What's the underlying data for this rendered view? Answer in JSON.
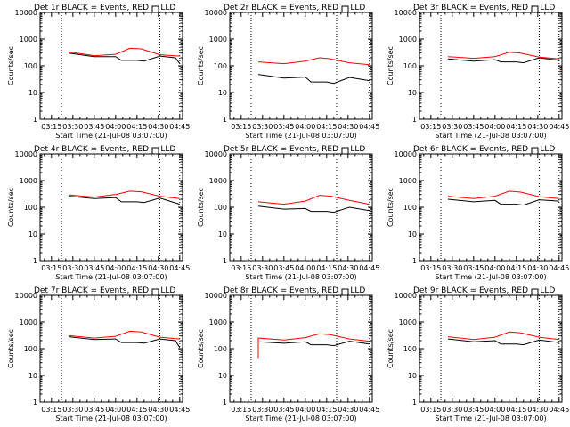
{
  "chart_data": [
    {
      "type": "line",
      "title": "Det 1r BLACK = Events, RED = LLD",
      "xlabel": "Start Time (21-Jul-08 03:07:00)",
      "ylabel": "Counts/sec",
      "x_tick_labels": [
        "03:15",
        "03:30",
        "03:45",
        "04:00",
        "04:15",
        "04:30",
        "04:45"
      ],
      "y_tick_labels": [
        "1",
        "10",
        "100",
        "1000",
        "10000"
      ],
      "ylim": [
        1,
        10000
      ],
      "yscale": "log",
      "xlim": [
        "03:07",
        "04:47"
      ],
      "dotted_lines_at": [
        "03:22",
        "04:31",
        "04:45"
      ],
      "series": [
        {
          "color": "#000000",
          "x": [
            "03:27",
            "03:45",
            "04:00",
            "04:04",
            "04:15",
            "04:20",
            "04:31",
            "04:42",
            "04:45"
          ],
          "y": [
            300,
            220,
            220,
            160,
            160,
            150,
            230,
            200,
            120
          ]
        },
        {
          "color": "#ff0000",
          "x": [
            "03:27",
            "03:45",
            "04:00",
            "04:10",
            "04:18",
            "04:31",
            "04:45"
          ],
          "y": [
            330,
            240,
            270,
            450,
            430,
            260,
            230
          ]
        }
      ]
    },
    {
      "type": "line",
      "title": "Det 2r BLACK = Events, RED = LLD",
      "xlabel": "Start Time (21-Jul-08 03:07:00)",
      "ylabel": "Counts/sec",
      "x_tick_labels": [
        "03:15",
        "03:30",
        "03:45",
        "04:00",
        "04:15",
        "04:30",
        "04:45"
      ],
      "y_tick_labels": [
        "1",
        "10",
        "100",
        "1000",
        "10000"
      ],
      "ylim": [
        1,
        10000
      ],
      "yscale": "log",
      "xlim": [
        "03:07",
        "04:47"
      ],
      "dotted_lines_at": [
        "03:22",
        "04:22",
        "04:45"
      ],
      "series": [
        {
          "color": "#000000",
          "x": [
            "03:27",
            "03:45",
            "04:00",
            "04:04",
            "04:15",
            "04:20",
            "04:31",
            "04:45"
          ],
          "y": [
            48,
            35,
            38,
            25,
            25,
            22,
            37,
            28
          ]
        },
        {
          "color": "#ff0000",
          "x": [
            "03:27",
            "03:45",
            "04:00",
            "04:10",
            "04:18",
            "04:31",
            "04:45"
          ],
          "y": [
            140,
            120,
            150,
            200,
            180,
            130,
            110
          ]
        }
      ]
    },
    {
      "type": "line",
      "title": "Det 3r BLACK = Events, RED = LLD",
      "xlabel": "Start Time (21-Jul-08 03:07:00)",
      "ylabel": "Counts/sec",
      "x_tick_labels": [
        "03:15",
        "03:30",
        "03:45",
        "04:00",
        "04:15",
        "04:30",
        "04:45"
      ],
      "y_tick_labels": [
        "1",
        "10",
        "100",
        "1000",
        "10000"
      ],
      "ylim": [
        1,
        10000
      ],
      "yscale": "log",
      "xlim": [
        "03:07",
        "04:47"
      ],
      "dotted_lines_at": [
        "03:22",
        "04:31",
        "04:45"
      ],
      "series": [
        {
          "color": "#000000",
          "x": [
            "03:27",
            "03:45",
            "04:00",
            "04:04",
            "04:15",
            "04:20",
            "04:31",
            "04:45"
          ],
          "y": [
            180,
            150,
            170,
            140,
            140,
            130,
            200,
            160
          ]
        },
        {
          "color": "#ff0000",
          "x": [
            "03:27",
            "03:45",
            "04:00",
            "04:10",
            "04:18",
            "04:31",
            "04:45"
          ],
          "y": [
            220,
            190,
            220,
            320,
            300,
            210,
            180
          ]
        }
      ]
    },
    {
      "type": "line",
      "title": "Det 4r BLACK = Events, RED = LLD",
      "xlabel": "Start Time (21-Jul-08 03:07:00)",
      "ylabel": "Counts/sec",
      "x_tick_labels": [
        "03:15",
        "03:30",
        "03:45",
        "04:00",
        "04:15",
        "04:30",
        "04:45"
      ],
      "y_tick_labels": [
        "1",
        "10",
        "100",
        "1000",
        "10000"
      ],
      "ylim": [
        1,
        10000
      ],
      "yscale": "log",
      "xlim": [
        "03:07",
        "04:47"
      ],
      "dotted_lines_at": [
        "03:22",
        "04:31",
        "04:45"
      ],
      "series": [
        {
          "color": "#000000",
          "x": [
            "03:27",
            "03:45",
            "04:00",
            "04:04",
            "04:15",
            "04:20",
            "04:31",
            "04:45"
          ],
          "y": [
            260,
            210,
            230,
            160,
            160,
            150,
            220,
            130
          ]
        },
        {
          "color": "#ff0000",
          "x": [
            "03:27",
            "03:45",
            "04:00",
            "04:10",
            "04:18",
            "04:31",
            "04:45"
          ],
          "y": [
            290,
            240,
            300,
            400,
            380,
            260,
            210
          ]
        }
      ]
    },
    {
      "type": "line",
      "title": "Det 5r BLACK = Events, RED = LLD",
      "xlabel": "Start Time (21-Jul-08 03:07:00)",
      "ylabel": "Counts/sec",
      "x_tick_labels": [
        "03:15",
        "03:30",
        "03:45",
        "04:00",
        "04:15",
        "04:30",
        "04:45"
      ],
      "y_tick_labels": [
        "1",
        "10",
        "100",
        "1000",
        "10000"
      ],
      "ylim": [
        1,
        10000
      ],
      "yscale": "log",
      "xlim": [
        "03:07",
        "04:47"
      ],
      "dotted_lines_at": [
        "03:22",
        "04:22",
        "04:45"
      ],
      "series": [
        {
          "color": "#000000",
          "x": [
            "03:27",
            "03:45",
            "04:00",
            "04:04",
            "04:15",
            "04:20",
            "04:31",
            "04:45"
          ],
          "y": [
            110,
            85,
            90,
            70,
            70,
            65,
            100,
            75
          ]
        },
        {
          "color": "#ff0000",
          "x": [
            "03:27",
            "03:45",
            "04:00",
            "04:10",
            "04:18",
            "04:31",
            "04:45"
          ],
          "y": [
            160,
            130,
            170,
            280,
            260,
            180,
            130
          ]
        }
      ]
    },
    {
      "type": "line",
      "title": "Det 6r BLACK = Events, RED = LLD",
      "xlabel": "Start Time (21-Jul-08 03:07:00)",
      "ylabel": "Counts/sec",
      "x_tick_labels": [
        "03:15",
        "03:30",
        "03:45",
        "04:00",
        "04:15",
        "04:30",
        "04:45"
      ],
      "y_tick_labels": [
        "1",
        "10",
        "100",
        "1000",
        "10000"
      ],
      "ylim": [
        1,
        10000
      ],
      "yscale": "log",
      "xlim": [
        "03:07",
        "04:47"
      ],
      "dotted_lines_at": [
        "03:22",
        "04:31",
        "04:45"
      ],
      "series": [
        {
          "color": "#000000",
          "x": [
            "03:27",
            "03:45",
            "04:00",
            "04:04",
            "04:15",
            "04:20",
            "04:31",
            "04:45"
          ],
          "y": [
            200,
            160,
            180,
            130,
            130,
            120,
            190,
            170
          ]
        },
        {
          "color": "#ff0000",
          "x": [
            "03:27",
            "03:45",
            "04:00",
            "04:10",
            "04:18",
            "04:31",
            "04:45"
          ],
          "y": [
            260,
            210,
            260,
            400,
            370,
            250,
            210
          ]
        }
      ]
    },
    {
      "type": "line",
      "title": "Det 7r BLACK = Events, RED = LLD",
      "xlabel": "Start Time (21-Jul-08 03:07:00)",
      "ylabel": "Counts/sec",
      "x_tick_labels": [
        "03:15",
        "03:30",
        "03:45",
        "04:00",
        "04:15",
        "04:30",
        "04:45"
      ],
      "y_tick_labels": [
        "1",
        "10",
        "100",
        "1000",
        "10000"
      ],
      "ylim": [
        1,
        10000
      ],
      "yscale": "log",
      "xlim": [
        "03:07",
        "04:47"
      ],
      "dotted_lines_at": [
        "03:22",
        "04:31",
        "04:45"
      ],
      "series": [
        {
          "color": "#000000",
          "x": [
            "03:27",
            "03:45",
            "04:00",
            "04:04",
            "04:15",
            "04:20",
            "04:31",
            "04:42",
            "04:45"
          ],
          "y": [
            280,
            220,
            230,
            170,
            170,
            160,
            230,
            200,
            110
          ]
        },
        {
          "color": "#ff0000",
          "x": [
            "03:27",
            "03:45",
            "04:00",
            "04:10",
            "04:18",
            "04:31",
            "04:45"
          ],
          "y": [
            310,
            250,
            290,
            450,
            420,
            270,
            230
          ]
        }
      ]
    },
    {
      "type": "line",
      "title": "Det 8r BLACK = Events, RED = LLD",
      "xlabel": "Start Time (21-Jul-08 03:07:00)",
      "ylabel": "Counts/sec",
      "x_tick_labels": [
        "03:15",
        "03:30",
        "03:45",
        "04:00",
        "04:15",
        "04:30",
        "04:45"
      ],
      "y_tick_labels": [
        "1",
        "10",
        "100",
        "1000",
        "10000"
      ],
      "ylim": [
        1,
        10000
      ],
      "yscale": "log",
      "xlim": [
        "03:07",
        "04:47"
      ],
      "dotted_lines_at": [
        "03:22",
        "04:22",
        "04:45"
      ],
      "series": [
        {
          "color": "#000000",
          "x": [
            "03:27",
            "03:27",
            "03:45",
            "04:00",
            "04:04",
            "04:15",
            "04:20",
            "04:31",
            "04:45"
          ],
          "y": [
            60,
            180,
            160,
            180,
            140,
            140,
            130,
            190,
            150
          ]
        },
        {
          "color": "#ff0000",
          "x": [
            "03:27",
            "03:27",
            "03:45",
            "04:00",
            "04:10",
            "04:18",
            "04:31",
            "04:45"
          ],
          "y": [
            45,
            250,
            210,
            260,
            360,
            330,
            230,
            190
          ]
        }
      ]
    },
    {
      "type": "line",
      "title": "Det 9r BLACK = Events, RED = LLD",
      "xlabel": "Start Time (21-Jul-08 03:07:00)",
      "ylabel": "Counts/sec",
      "x_tick_labels": [
        "03:15",
        "03:30",
        "03:45",
        "04:00",
        "04:15",
        "04:30",
        "04:45"
      ],
      "y_tick_labels": [
        "1",
        "10",
        "100",
        "1000",
        "10000"
      ],
      "ylim": [
        1,
        10000
      ],
      "yscale": "log",
      "xlim": [
        "03:07",
        "04:47"
      ],
      "dotted_lines_at": [
        "03:22",
        "04:31",
        "04:45"
      ],
      "series": [
        {
          "color": "#000000",
          "x": [
            "03:27",
            "03:45",
            "04:00",
            "04:04",
            "04:15",
            "04:20",
            "04:31",
            "04:45"
          ],
          "y": [
            230,
            180,
            200,
            150,
            150,
            140,
            210,
            170
          ]
        },
        {
          "color": "#ff0000",
          "x": [
            "03:27",
            "03:45",
            "04:00",
            "04:10",
            "04:18",
            "04:31",
            "04:45"
          ],
          "y": [
            280,
            220,
            270,
            420,
            390,
            270,
            220
          ]
        }
      ]
    }
  ]
}
